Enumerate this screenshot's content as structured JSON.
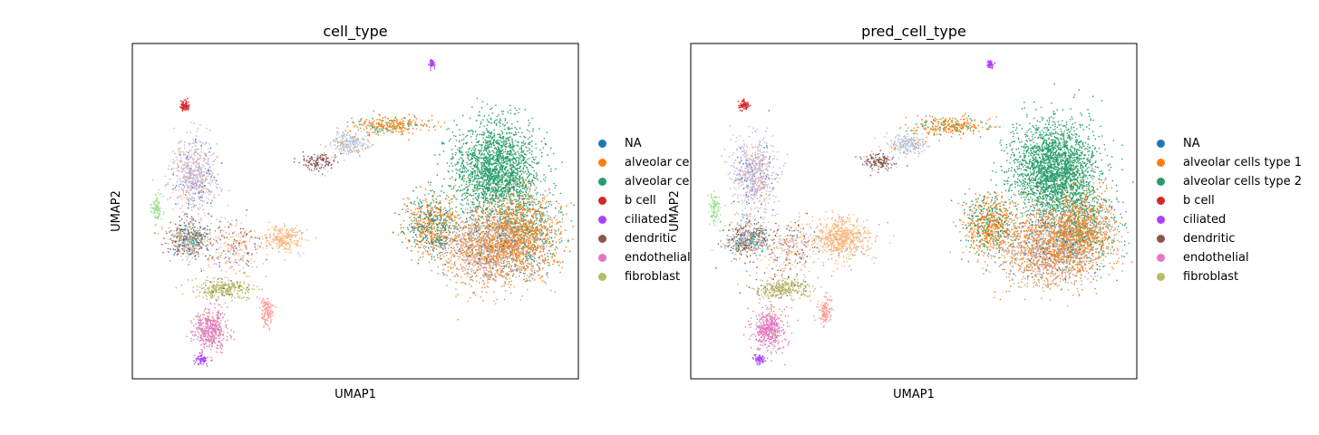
{
  "chart_data": [
    {
      "type": "scatter",
      "title": "cell_type",
      "xlabel": "UMAP1",
      "ylabel": "UMAP2",
      "grid": false,
      "xticks": false,
      "yticks": false,
      "legend_position": "right",
      "legend": [
        {
          "label": "NA",
          "color": "#1f77b4"
        },
        {
          "label": "alveolar ce",
          "color": "#ff7f0e"
        },
        {
          "label": "alveolar ce",
          "color": "#279e68"
        },
        {
          "label": "b cell",
          "color": "#d62728"
        },
        {
          "label": "ciliated",
          "color": "#aa40fc"
        },
        {
          "label": "dendritic",
          "color": "#8c564b"
        },
        {
          "label": "endothelial",
          "color": "#e377c2"
        },
        {
          "label": "fibroblast",
          "color": "#b5bd61"
        }
      ]
    },
    {
      "type": "scatter",
      "title": "pred_cell_type",
      "xlabel": "UMAP1",
      "ylabel": "UMAP2",
      "grid": false,
      "xticks": false,
      "yticks": false,
      "legend_position": "right",
      "legend": [
        {
          "label": "NA",
          "color": "#1f77b4"
        },
        {
          "label": "alveolar cells type 1",
          "color": "#ff7f0e"
        },
        {
          "label": "alveolar cells type 2",
          "color": "#279e68"
        },
        {
          "label": "b cell",
          "color": "#d62728"
        },
        {
          "label": "ciliated",
          "color": "#aa40fc"
        },
        {
          "label": "dendritic",
          "color": "#8c564b"
        },
        {
          "label": "endothelial",
          "color": "#e377c2"
        },
        {
          "label": "fibroblast",
          "color": "#b5bd61"
        }
      ]
    }
  ],
  "extra_colors": {
    "blood_vessel": "#aec7e8",
    "lavender": "#c5b0d5",
    "peach": "#ffbb78",
    "salmon": "#ff9896",
    "light_green": "#98df8a",
    "tan": "#c49c94",
    "cyan": "#17becf"
  }
}
